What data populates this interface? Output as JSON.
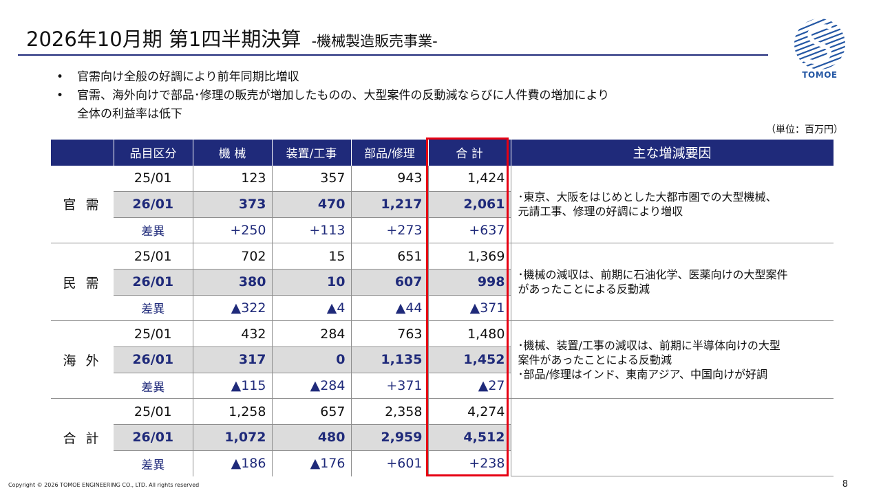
{
  "header": {
    "title": "2026年10月期 第1四半期決算",
    "subtitle": "-機械製造販売事業-"
  },
  "logo": {
    "text": "TOMOE",
    "accent_color": "#2457a4"
  },
  "bullets": [
    {
      "marker": "•",
      "lines": [
        "官需向け全般の好調により前年同期比増収"
      ]
    },
    {
      "marker": "•",
      "lines": [
        "官需、海外向けで部品･修理の販売が増加したものの、大型案件の反動減ならびに人件費の増加により",
        "全体の利益率は低下"
      ]
    }
  ],
  "unit_note": "（単位：百万円）",
  "table": {
    "headers": [
      "",
      "品目区分",
      "機 械",
      "装置/工事",
      "部品/修理",
      "合 計",
      "主な増減要因"
    ],
    "groups": [
      {
        "name": "官 需",
        "rows": [
          {
            "period": "25/01",
            "values": [
              "123",
              "357",
              "943",
              "1,424"
            ]
          },
          {
            "period": "26/01",
            "values": [
              "373",
              "470",
              "1,217",
              "2,061"
            ]
          },
          {
            "period": "差異",
            "values": [
              "+250",
              "+113",
              "+273",
              "+637"
            ]
          }
        ],
        "factors": [
          "･東京、大阪をはじめとした大都市圏での大型機械、",
          "元請工事、修理の好調により増収"
        ]
      },
      {
        "name": "民 需",
        "rows": [
          {
            "period": "25/01",
            "values": [
              "702",
              "15",
              "651",
              "1,369"
            ]
          },
          {
            "period": "26/01",
            "values": [
              "380",
              "10",
              "607",
              "998"
            ]
          },
          {
            "period": "差異",
            "values": [
              "▲322",
              "▲4",
              "▲44",
              "▲371"
            ]
          }
        ],
        "factors": [
          "･機械の減収は、前期に石油化学、医薬向けの大型案件",
          "があったことによる反動減"
        ]
      },
      {
        "name": "海 外",
        "rows": [
          {
            "period": "25/01",
            "values": [
              "432",
              "284",
              "763",
              "1,480"
            ]
          },
          {
            "period": "26/01",
            "values": [
              "317",
              "0",
              "1,135",
              "1,452"
            ]
          },
          {
            "period": "差異",
            "values": [
              "▲115",
              "▲284",
              "+371",
              "▲27"
            ]
          }
        ],
        "factors": [
          "･機械、装置/工事の減収は、前期に半導体向けの大型",
          "案件があったことによる反動減",
          "･部品/修理はインド、東南アジア、中国向けが好調"
        ]
      },
      {
        "name": "合 計",
        "rows": [
          {
            "period": "25/01",
            "values": [
              "1,258",
              "657",
              "2,358",
              "4,274"
            ]
          },
          {
            "period": "26/01",
            "values": [
              "1,072",
              "480",
              "2,959",
              "4,512"
            ]
          },
          {
            "period": "差異",
            "values": [
              "▲186",
              "▲176",
              "+601",
              "+238"
            ]
          }
        ],
        "factors": []
      }
    ]
  },
  "footer": {
    "copyright": "Copyright © 2026 TOMOE ENGINEERING CO., LTD. All rights reserved",
    "page_number": "8"
  },
  "colors": {
    "navy": "#1f2a7a",
    "highlight_border": "#e60012",
    "row_gray": "#dcdcdc"
  }
}
